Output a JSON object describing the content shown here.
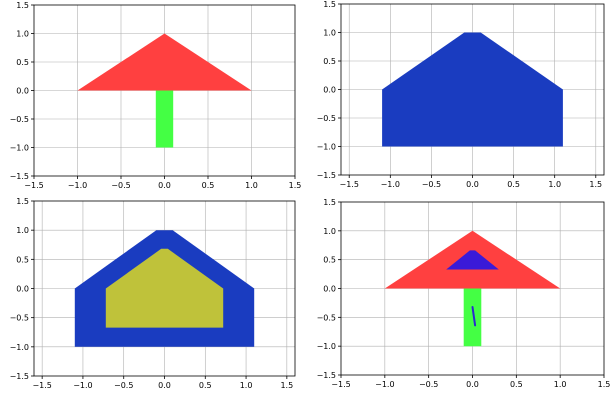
{
  "chart_data": [
    {
      "type": "area",
      "xlim": [
        -1.5,
        1.5
      ],
      "ylim": [
        -1.5,
        1.5
      ],
      "grid": true,
      "xticks": [
        "-1.5",
        "-1.0",
        "-0.5",
        "0.0",
        "0.5",
        "1.0",
        "1.5"
      ],
      "yticks": [
        "-1.5",
        "-1.0",
        "-0.5",
        "0.0",
        "0.5",
        "1.0",
        "1.5"
      ],
      "shapes": [
        {
          "kind": "polygon",
          "color": "#ff4040",
          "points": [
            [
              -1.0,
              0.0
            ],
            [
              0.0,
              1.0
            ],
            [
              1.0,
              0.0
            ]
          ]
        },
        {
          "kind": "polygon",
          "color": "#44ff44",
          "points": [
            [
              -0.1,
              -1.0
            ],
            [
              0.1,
              -1.0
            ],
            [
              0.1,
              0.0
            ],
            [
              -0.1,
              0.0
            ]
          ]
        }
      ]
    },
    {
      "type": "area",
      "xlim": [
        -1.6,
        1.6
      ],
      "ylim": [
        -1.5,
        1.5
      ],
      "grid": true,
      "xticks": [
        "-1.5",
        "-1.0",
        "-0.5",
        "0.0",
        "0.5",
        "1.0",
        "1.5"
      ],
      "yticks": [
        "-1.5",
        "-1.0",
        "-0.5",
        "0.0",
        "0.5",
        "1.0",
        "1.5"
      ],
      "shapes": [
        {
          "kind": "polygon",
          "color": "#1a3cc0",
          "points": [
            [
              -1.1,
              -1.0
            ],
            [
              1.1,
              -1.0
            ],
            [
              1.1,
              0.0
            ],
            [
              0.1,
              1.0
            ],
            [
              -0.1,
              1.0
            ],
            [
              -1.1,
              0.0
            ]
          ]
        }
      ]
    },
    {
      "type": "area",
      "xlim": [
        -1.6,
        1.6
      ],
      "ylim": [
        -1.5,
        1.5
      ],
      "grid": true,
      "xticks": [
        "-1.5",
        "-1.0",
        "-0.5",
        "0.0",
        "0.5",
        "1.0",
        "1.5"
      ],
      "yticks": [
        "-1.5",
        "-1.0",
        "-0.5",
        "0.0",
        "0.5",
        "1.0",
        "1.5"
      ],
      "shapes": [
        {
          "kind": "polygon",
          "color": "#1a3cc0",
          "points": [
            [
              -1.1,
              -1.0
            ],
            [
              1.1,
              -1.0
            ],
            [
              1.1,
              0.0
            ],
            [
              0.1,
              1.0
            ],
            [
              -0.1,
              1.0
            ],
            [
              -1.1,
              0.0
            ]
          ]
        },
        {
          "kind": "polygon",
          "color": "#bfc23a",
          "points": [
            [
              -0.72,
              -0.67
            ],
            [
              0.72,
              -0.67
            ],
            [
              0.72,
              0.0
            ],
            [
              0.04,
              0.68
            ],
            [
              -0.04,
              0.68
            ],
            [
              -0.72,
              0.0
            ]
          ]
        }
      ]
    },
    {
      "type": "area",
      "xlim": [
        -1.5,
        1.5
      ],
      "ylim": [
        -1.5,
        1.5
      ],
      "grid": true,
      "xticks": [
        "-1.5",
        "-1.0",
        "-0.5",
        "0.0",
        "0.5",
        "1.0",
        "1.5"
      ],
      "yticks": [
        "-1.5",
        "-1.0",
        "-0.5",
        "0.0",
        "0.5",
        "1.0",
        "1.5"
      ],
      "shapes": [
        {
          "kind": "polygon",
          "color": "#ff4040",
          "points": [
            [
              -1.0,
              0.0
            ],
            [
              0.0,
              1.0
            ],
            [
              1.0,
              0.0
            ]
          ]
        },
        {
          "kind": "polygon",
          "color": "#44ff44",
          "points": [
            [
              -0.1,
              -1.0
            ],
            [
              0.1,
              -1.0
            ],
            [
              0.1,
              0.0
            ],
            [
              -0.1,
              0.0
            ]
          ]
        },
        {
          "kind": "polygon",
          "color": "#3a1ad8",
          "points": [
            [
              -0.3,
              0.33
            ],
            [
              0.3,
              0.33
            ],
            [
              0.03,
              0.66
            ],
            [
              -0.03,
              0.66
            ]
          ]
        },
        {
          "kind": "line",
          "color": "#2a2ad0",
          "points": [
            [
              0.0,
              -0.32
            ],
            [
              0.03,
              -0.64
            ]
          ]
        }
      ]
    }
  ]
}
